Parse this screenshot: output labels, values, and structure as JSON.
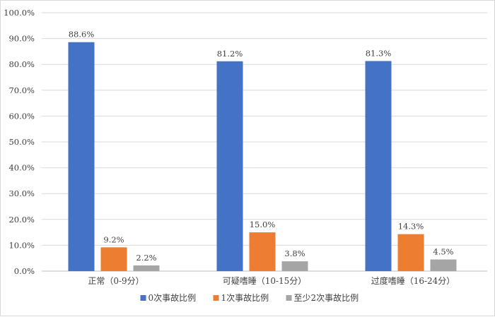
{
  "chart_data": {
    "type": "bar",
    "categories": [
      "正常（0-9分）",
      "可疑嗜睡（10-15分）",
      "过度嗜睡（16-24分）"
    ],
    "series": [
      {
        "name": "0次事故比例",
        "values": [
          88.6,
          81.2,
          81.3
        ],
        "labels": [
          "88.6%",
          "81.2%",
          "81.3%"
        ],
        "color": "#4472C4"
      },
      {
        "name": "1次事故比例",
        "values": [
          9.2,
          15.0,
          14.3
        ],
        "labels": [
          "9.2%",
          "15.0%",
          "14.3%"
        ],
        "color": "#ED7D31"
      },
      {
        "name": "至少2次事故比例",
        "values": [
          2.2,
          3.8,
          4.5
        ],
        "labels": [
          "2.2%",
          "3.8%",
          "4.5%"
        ],
        "color": "#A5A5A5"
      }
    ],
    "ylim": [
      0,
      100
    ],
    "yticks": [
      "0.0%",
      "10.0%",
      "20.0%",
      "30.0%",
      "40.0%",
      "50.0%",
      "60.0%",
      "70.0%",
      "80.0%",
      "90.0%",
      "100.0%"
    ],
    "grid": true,
    "legend_position": "bottom",
    "title": "",
    "xlabel": "",
    "ylabel": ""
  }
}
